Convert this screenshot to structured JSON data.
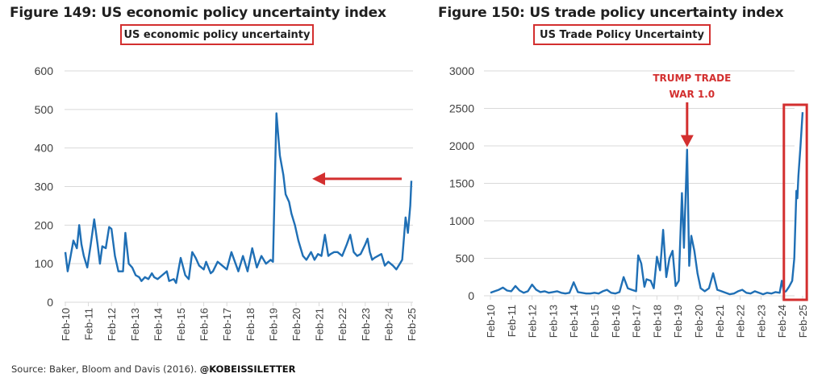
{
  "colors": {
    "line": "#1f6fb5",
    "highlight": "#d32f2f",
    "grid": "#d9d9d9"
  },
  "source": {
    "text": "Source: Baker, Bloom and Davis (2016).",
    "handle": "@KOBEISSILETTER"
  },
  "chart_data": [
    {
      "type": "line",
      "title": "Figure 149: US economic policy uncertainty index",
      "legend": "US economic policy uncertainty",
      "xlabel": "",
      "ylabel": "",
      "ylim": [
        0,
        600
      ],
      "yticks": [
        "0",
        "100",
        "200",
        "300",
        "400",
        "500",
        "600"
      ],
      "categories": [
        "Feb-10",
        "Feb-11",
        "Feb-12",
        "Feb-13",
        "Feb-14",
        "Feb-15",
        "Feb-16",
        "Feb-17",
        "Feb-18",
        "Feb-19",
        "Feb-20",
        "Feb-21",
        "Feb-22",
        "Feb-23",
        "Feb-24",
        "Feb-25"
      ],
      "grid": true,
      "annotation": {
        "type": "arrow",
        "points_to_year": 2020.7,
        "value": 320
      },
      "series": [
        {
          "name": "US economic policy uncertainty",
          "x": [
            2010.0,
            2010.1,
            2010.2,
            2010.35,
            2010.5,
            2010.6,
            2010.7,
            2010.8,
            2010.95,
            2011.1,
            2011.25,
            2011.4,
            2011.5,
            2011.6,
            2011.75,
            2011.9,
            2012.0,
            2012.15,
            2012.3,
            2012.5,
            2012.6,
            2012.75,
            2012.9,
            2013.05,
            2013.2,
            2013.3,
            2013.45,
            2013.6,
            2013.75,
            2013.85,
            2014.0,
            2014.2,
            2014.4,
            2014.5,
            2014.7,
            2014.8,
            2015.0,
            2015.2,
            2015.35,
            2015.5,
            2015.65,
            2015.8,
            2016.0,
            2016.1,
            2016.3,
            2016.4,
            2016.6,
            2016.8,
            2017.0,
            2017.2,
            2017.35,
            2017.5,
            2017.7,
            2017.9,
            2018.1,
            2018.3,
            2018.5,
            2018.7,
            2018.9,
            2019.0,
            2019.15,
            2019.3,
            2019.45,
            2019.55,
            2019.7,
            2019.8,
            2019.95,
            2020.1,
            2020.2,
            2020.3,
            2020.45,
            2020.55,
            2020.65,
            2020.8,
            2020.95,
            2021.1,
            2021.25,
            2021.4,
            2021.5,
            2021.65,
            2021.8,
            2022.0,
            2022.2,
            2022.35,
            2022.5,
            2022.65,
            2022.8,
            2023.0,
            2023.1,
            2023.2,
            2023.3,
            2023.4,
            2023.55,
            2023.7,
            2023.85,
            2024.0,
            2024.2,
            2024.35,
            2024.5,
            2024.6,
            2024.75,
            2024.85,
            2024.95,
            2025.0
          ],
          "values": [
            130,
            80,
            110,
            160,
            140,
            200,
            150,
            120,
            90,
            150,
            215,
            150,
            100,
            145,
            140,
            195,
            190,
            120,
            80,
            80,
            180,
            100,
            90,
            70,
            65,
            55,
            65,
            60,
            75,
            65,
            60,
            70,
            80,
            55,
            60,
            50,
            115,
            70,
            60,
            130,
            115,
            95,
            85,
            105,
            75,
            80,
            105,
            95,
            85,
            130,
            105,
            80,
            120,
            80,
            140,
            90,
            120,
            100,
            110,
            105,
            490,
            380,
            330,
            280,
            260,
            230,
            200,
            160,
            140,
            120,
            110,
            120,
            130,
            110,
            125,
            120,
            175,
            120,
            125,
            130,
            130,
            120,
            150,
            175,
            130,
            120,
            125,
            150,
            165,
            130,
            110,
            115,
            120,
            125,
            95,
            105,
            95,
            85,
            100,
            110,
            220,
            180,
            250,
            315
          ]
        }
      ]
    },
    {
      "type": "line",
      "title": "Figure 150: US trade policy uncertainty index",
      "legend": "US Trade Policy Uncertainty",
      "xlabel": "",
      "ylabel": "",
      "ylim": [
        0,
        3000
      ],
      "yticks": [
        "0",
        "500",
        "1000",
        "1500",
        "2000",
        "2500",
        "3000"
      ],
      "categories": [
        "Feb-10",
        "Feb-11",
        "Feb-12",
        "Feb-13",
        "Feb-14",
        "Feb-15",
        "Feb-16",
        "Feb-17",
        "Feb-18",
        "Feb-19",
        "Feb-20",
        "Feb-21",
        "Feb-22",
        "Feb-23",
        "Feb-24",
        "Feb-25"
      ],
      "grid": true,
      "annotation": {
        "type": "arrow-label",
        "text_line1": "TRUMP TRADE",
        "text_line2": "WAR 1.0",
        "points_to_year": 2019.45,
        "value": 1950,
        "highlight_box_years": [
          2024.1,
          2025.2
        ]
      },
      "series": [
        {
          "name": "US Trade Policy Uncertainty",
          "x": [
            2010.0,
            2010.2,
            2010.4,
            2010.6,
            2010.8,
            2011.0,
            2011.2,
            2011.4,
            2011.6,
            2011.8,
            2012.0,
            2012.2,
            2012.4,
            2012.6,
            2012.8,
            2013.0,
            2013.2,
            2013.4,
            2013.6,
            2013.8,
            2014.0,
            2014.2,
            2014.4,
            2014.6,
            2014.8,
            2015.0,
            2015.2,
            2015.4,
            2015.6,
            2015.8,
            2016.0,
            2016.2,
            2016.4,
            2016.6,
            2016.8,
            2017.0,
            2017.1,
            2017.25,
            2017.4,
            2017.5,
            2017.7,
            2017.85,
            2018.0,
            2018.15,
            2018.3,
            2018.45,
            2018.6,
            2018.75,
            2018.9,
            2019.05,
            2019.2,
            2019.3,
            2019.45,
            2019.55,
            2019.65,
            2019.8,
            2019.95,
            2020.1,
            2020.3,
            2020.5,
            2020.7,
            2020.9,
            2021.1,
            2021.3,
            2021.5,
            2021.7,
            2021.9,
            2022.1,
            2022.3,
            2022.5,
            2022.7,
            2022.9,
            2023.1,
            2023.3,
            2023.5,
            2023.7,
            2023.9,
            2024.0,
            2024.1,
            2024.2,
            2024.35,
            2024.5,
            2024.6,
            2024.7,
            2024.75,
            2024.8,
            2024.9,
            2025.0
          ],
          "values": [
            40,
            60,
            80,
            110,
            70,
            60,
            130,
            70,
            40,
            60,
            150,
            80,
            50,
            60,
            40,
            50,
            60,
            40,
            30,
            40,
            180,
            50,
            40,
            30,
            30,
            40,
            30,
            60,
            80,
            40,
            30,
            50,
            250,
            100,
            80,
            60,
            540,
            430,
            120,
            220,
            200,
            100,
            520,
            340,
            880,
            250,
            500,
            600,
            130,
            200,
            1370,
            640,
            1950,
            400,
            800,
            600,
            300,
            100,
            60,
            100,
            300,
            80,
            60,
            40,
            20,
            30,
            60,
            80,
            40,
            30,
            60,
            40,
            20,
            40,
            30,
            50,
            40,
            200,
            50,
            60,
            120,
            200,
            500,
            1400,
            1300,
            1600,
            2000,
            2450
          ]
        }
      ]
    }
  ]
}
